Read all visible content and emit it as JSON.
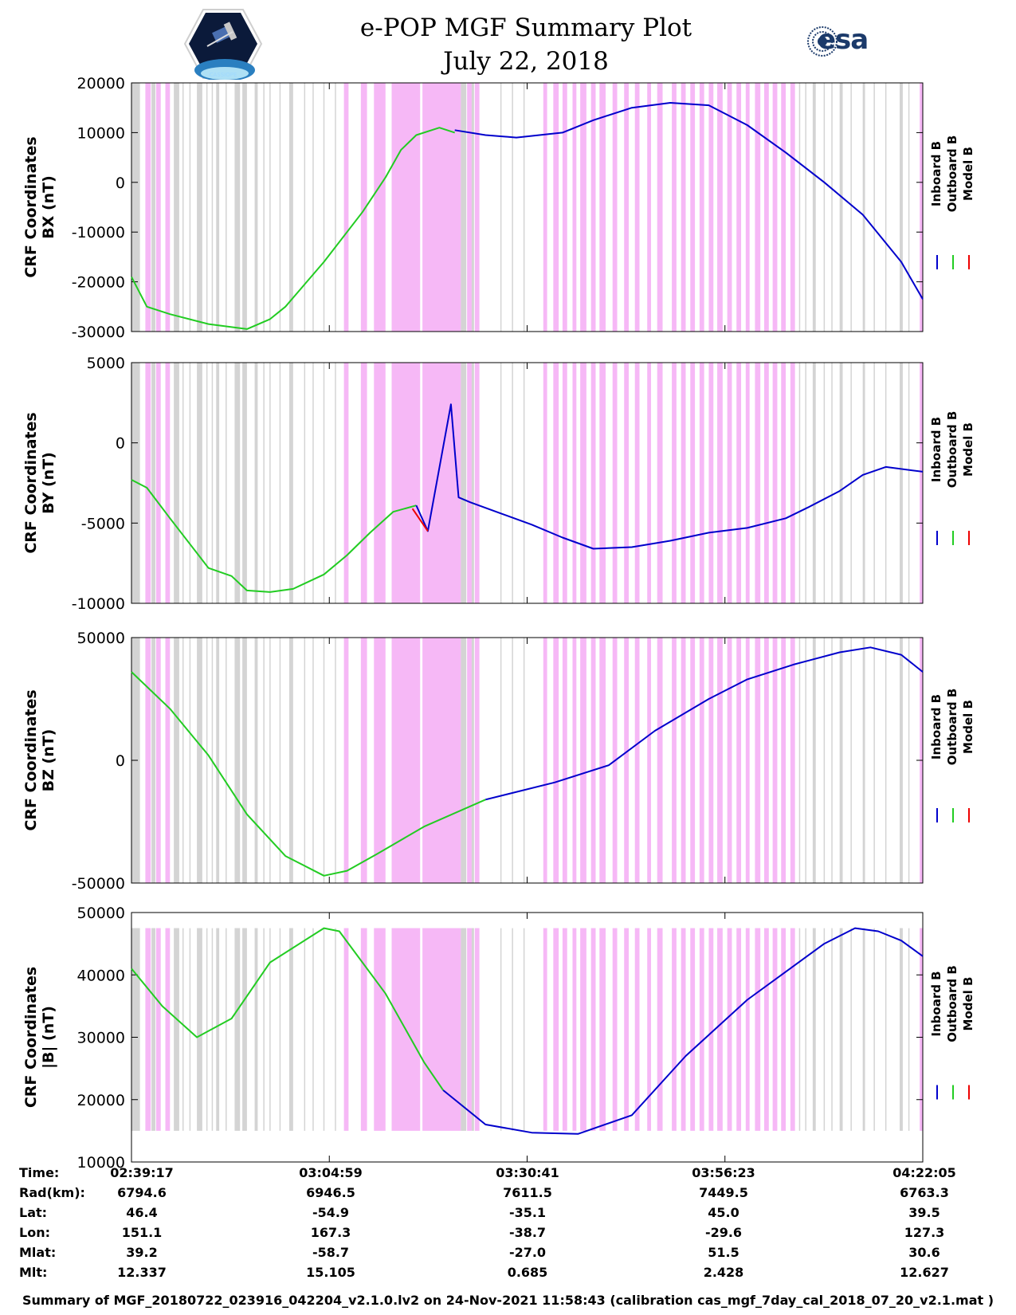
{
  "title": {
    "line1": "e-POP MGF Summary Plot",
    "line2": "July 22, 2018"
  },
  "logos": {
    "left": "casiope-mission-logo",
    "right_text": "esa"
  },
  "legend": [
    "Inboard B",
    "Outboard B",
    "Model B"
  ],
  "colors": {
    "inboard": "#0000cc",
    "outboard": "#22cc22",
    "model": "#ee0000",
    "band_magenta": "#f6b8f6",
    "band_gray": "#d4d4d4"
  },
  "footer": {
    "rows": [
      {
        "label": "Time:",
        "values": [
          "02:39:17",
          "03:04:59",
          "03:30:41",
          "03:56:23",
          "04:22:05"
        ]
      },
      {
        "label": "Rad(km):",
        "values": [
          "6794.6",
          "6946.5",
          "7611.5",
          "7449.5",
          "6763.3"
        ]
      },
      {
        "label": "Lat:",
        "values": [
          "46.4",
          "-54.9",
          "-35.1",
          "45.0",
          "39.5"
        ]
      },
      {
        "label": "Lon:",
        "values": [
          "151.1",
          "167.3",
          "-38.7",
          "-29.6",
          "127.3"
        ]
      },
      {
        "label": "Mlat:",
        "values": [
          "39.2",
          "-58.7",
          "-27.0",
          "51.5",
          "30.6"
        ]
      },
      {
        "label": "Mlt:",
        "values": [
          "12.337",
          "15.105",
          "0.685",
          "2.428",
          "12.627"
        ]
      }
    ],
    "summary": "Summary of MGF_20180722_023916_042204_v2.1.0.lv2 on 24-Nov-2021 11:58:43 (calibration cas_mgf_7day_cal_2018_07_20_v2.1.mat )"
  },
  "chart_data": [
    {
      "type": "line",
      "ylabel": [
        "CRF Coordinates",
        "BX (nT)"
      ],
      "ylim": [
        -30000,
        20000
      ],
      "yticks": [
        -30000,
        -20000,
        -10000,
        0,
        10000,
        20000
      ],
      "xlim": [
        0,
        102.8
      ],
      "xticks_minutes": [
        0,
        25.7,
        51.4,
        77.1,
        102.8
      ],
      "series": [
        {
          "name": "Outboard B",
          "color": "outboard",
          "x": [
            0,
            2,
            5,
            10,
            15,
            18,
            20,
            25,
            30,
            33,
            35,
            37,
            40,
            42
          ],
          "y": [
            -19000,
            -25000,
            -26500,
            -28500,
            -29500,
            -27500,
            -25000,
            -16000,
            -6000,
            1000,
            6500,
            9500,
            11000,
            10000
          ]
        },
        {
          "name": "Inboard B",
          "color": "inboard",
          "x": [
            42,
            46,
            50,
            56,
            60,
            65,
            70,
            75,
            80,
            85,
            90,
            95,
            100,
            102.8
          ],
          "y": [
            10500,
            9500,
            9000,
            10000,
            12500,
            15000,
            16000,
            15500,
            11500,
            6000,
            0,
            -6500,
            -16000,
            -23500
          ]
        }
      ]
    },
    {
      "type": "line",
      "ylabel": [
        "CRF Coordinates",
        "BY (nT)"
      ],
      "ylim": [
        -10000,
        5000
      ],
      "yticks": [
        -10000,
        -5000,
        0,
        5000
      ],
      "xlim": [
        0,
        102.8
      ],
      "series": [
        {
          "name": "Outboard B",
          "color": "outboard",
          "x": [
            0,
            2,
            5,
            10,
            13,
            15,
            18,
            21,
            25,
            28,
            31,
            34,
            37
          ],
          "y": [
            -2300,
            -2800,
            -4700,
            -7800,
            -8300,
            -9200,
            -9300,
            -9100,
            -8200,
            -7000,
            -5600,
            -4300,
            -3900
          ]
        },
        {
          "name": "Inboard B",
          "color": "inboard",
          "x": [
            37,
            38.5,
            41.5,
            42.5,
            44,
            48,
            52,
            56,
            60,
            65,
            70,
            75,
            80,
            85,
            88,
            92,
            95,
            98,
            102.8
          ],
          "y": [
            -3900,
            -5500,
            2400,
            -3400,
            -3700,
            -4400,
            -5100,
            -5900,
            -6600,
            -6500,
            -6100,
            -5600,
            -5300,
            -4700,
            -4000,
            -3000,
            -2000,
            -1500,
            -1800
          ]
        },
        {
          "name": "Model B",
          "color": "model",
          "x": [
            36.5,
            38.5
          ],
          "y": [
            -4100,
            -5500
          ]
        }
      ]
    },
    {
      "type": "line",
      "ylabel": [
        "CRF Coordinates",
        "BZ (nT)"
      ],
      "ylim": [
        -50000,
        50000
      ],
      "yticks": [
        -50000,
        0,
        50000
      ],
      "xlim": [
        0,
        102.8
      ],
      "series": [
        {
          "name": "Outboard B",
          "color": "outboard",
          "x": [
            0,
            5,
            10,
            15,
            20,
            25,
            28,
            32,
            38,
            46
          ],
          "y": [
            36000,
            21000,
            2000,
            -22000,
            -39000,
            -47000,
            -45000,
            -38000,
            -27000,
            -16000
          ]
        },
        {
          "name": "Inboard B",
          "color": "inboard",
          "x": [
            46,
            55,
            62,
            68,
            75,
            80,
            86,
            92,
            96,
            100,
            102.8
          ],
          "y": [
            -16000,
            -9000,
            -2000,
            12000,
            25000,
            33000,
            39000,
            44000,
            46000,
            43000,
            36000
          ]
        }
      ]
    },
    {
      "type": "line",
      "ylabel": [
        "CRF Coordinates",
        "|B| (nT)"
      ],
      "ylim": [
        10000,
        50000
      ],
      "yticks": [
        10000,
        20000,
        30000,
        40000,
        50000
      ],
      "xlim": [
        0,
        102.8
      ],
      "series": [
        {
          "name": "Outboard B",
          "color": "outboard",
          "x": [
            0,
            4,
            8.5,
            13,
            18,
            25,
            27,
            33,
            38,
            40.5
          ],
          "y": [
            41000,
            35000,
            30000,
            33000,
            42000,
            47500,
            47000,
            37000,
            26000,
            21500
          ]
        },
        {
          "name": "Inboard B",
          "color": "inboard",
          "x": [
            40.5,
            46,
            52,
            58,
            65,
            72,
            80,
            85,
            90,
            94,
            97,
            100,
            102.8
          ],
          "y": [
            21500,
            16000,
            14700,
            14500,
            17500,
            27000,
            36000,
            40500,
            45000,
            47500,
            47000,
            45500,
            43000
          ]
        }
      ]
    }
  ],
  "bands": {
    "magenta": [
      [
        1.8,
        2.5
      ],
      [
        3.2,
        3.8
      ],
      [
        4.4,
        5.0
      ],
      [
        27.6,
        28.2
      ],
      [
        29.8,
        30.6
      ],
      [
        31.5,
        33.0
      ],
      [
        33.8,
        37.5
      ],
      [
        37.8,
        42.8
      ],
      [
        43.6,
        44.2
      ],
      [
        44.6,
        45.2
      ],
      [
        53.5,
        54.0
      ],
      [
        54.8,
        55.5
      ],
      [
        56.0,
        56.6
      ],
      [
        57.3,
        57.8
      ],
      [
        58.3,
        59.1
      ],
      [
        59.7,
        60.3
      ],
      [
        60.8,
        61.6
      ],
      [
        62.5,
        63.1
      ],
      [
        64.0,
        64.6
      ],
      [
        65.4,
        66.0
      ],
      [
        67.0,
        67.5
      ],
      [
        68.3,
        69.0
      ],
      [
        70.2,
        70.8
      ],
      [
        71.4,
        72.0
      ],
      [
        72.6,
        73.2
      ],
      [
        73.8,
        74.4
      ],
      [
        75.0,
        75.6
      ],
      [
        76.1,
        76.8
      ],
      [
        77.4,
        78.0
      ],
      [
        78.6,
        79.2
      ],
      [
        79.8,
        80.3
      ],
      [
        81.0,
        81.7
      ],
      [
        82.2,
        82.8
      ],
      [
        83.3,
        83.9
      ],
      [
        84.4,
        85.0
      ],
      [
        85.6,
        86.2
      ],
      [
        102.4,
        102.8
      ]
    ],
    "gray": [
      [
        0,
        1.1
      ],
      [
        2.6,
        3.1
      ],
      [
        5.5,
        6.2
      ],
      [
        8.5,
        9.2
      ],
      [
        11.0,
        11.4
      ],
      [
        13.4,
        14.1
      ],
      [
        14.4,
        15.0
      ],
      [
        16.0,
        16.4
      ],
      [
        20.5,
        21.0
      ],
      [
        42.8,
        43.5
      ],
      [
        44.2,
        44.5
      ],
      [
        88.5,
        88.9
      ],
      [
        92.0,
        92.4
      ],
      [
        95.0,
        95.3
      ],
      [
        99.8,
        100.2
      ]
    ],
    "gray_lines": [
      6.7,
      7.6,
      9.8,
      10.5,
      12.3,
      17.2,
      18.0,
      19.3,
      22.5,
      23.6,
      25.0,
      26.5,
      48.0,
      49.5,
      51.0,
      86.8,
      87.6,
      90.0,
      91.0,
      93.5,
      96.5,
      98.0,
      101.0
    ]
  }
}
